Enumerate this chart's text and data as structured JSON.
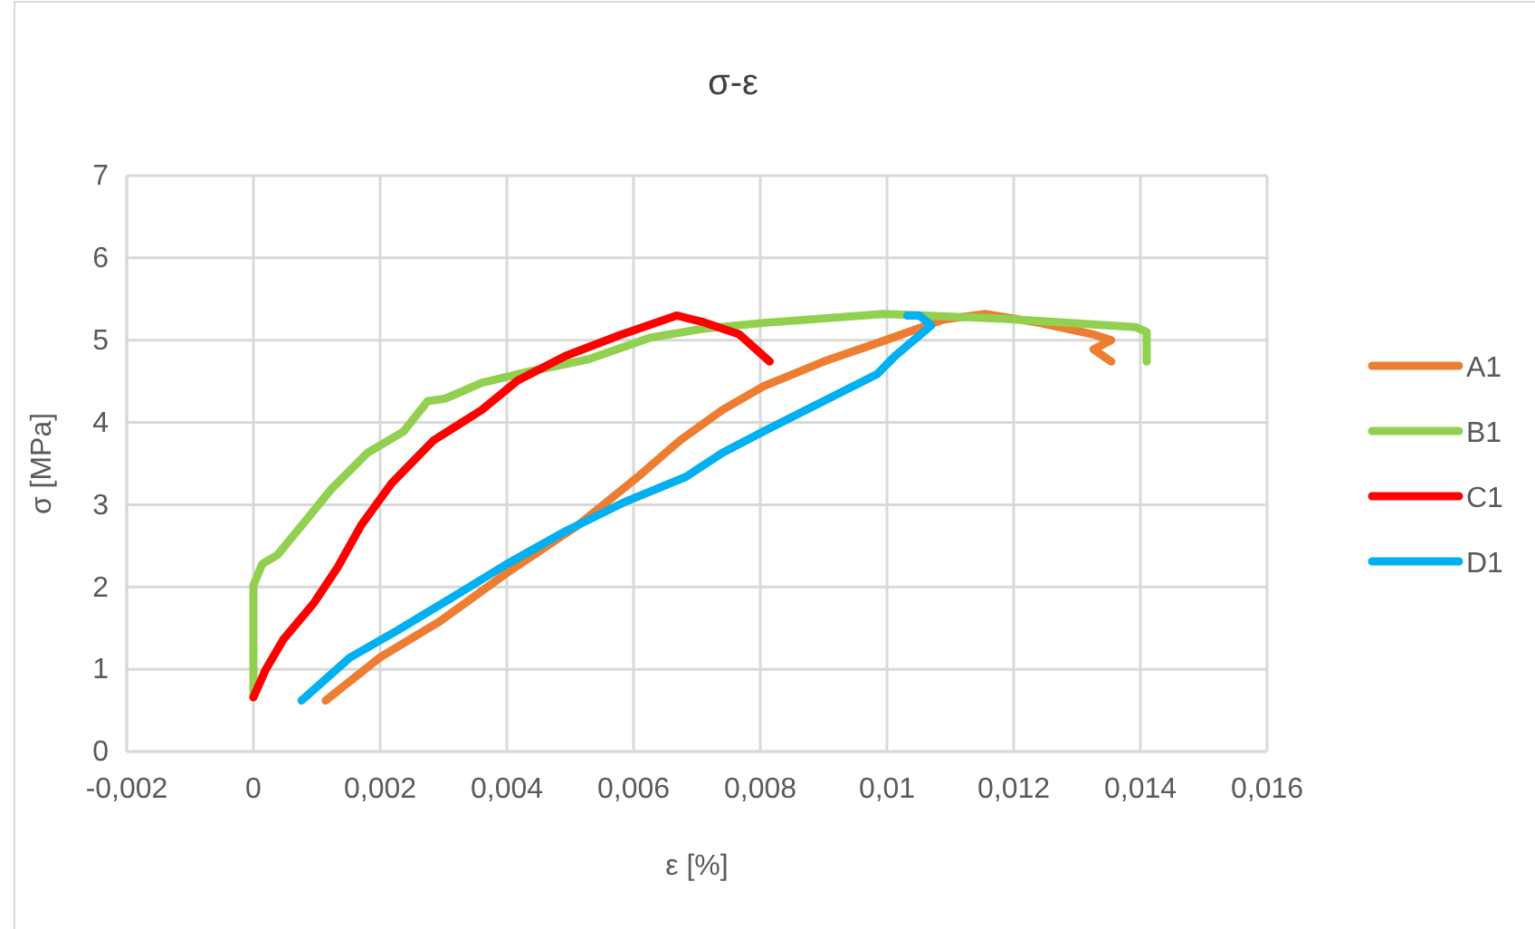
{
  "chart_data": {
    "type": "line",
    "title": "σ-ε",
    "xlabel": "ε [%]",
    "ylabel": "σ [MPa]",
    "xlim": [
      -0.002,
      0.016
    ],
    "xticks": [
      {
        "value": -0.002,
        "label": "-0,002"
      },
      0,
      {
        "value": 0.002,
        "label": "0,002"
      },
      {
        "value": 0.004,
        "label": "0,004"
      },
      {
        "value": 0.006,
        "label": "0,006"
      },
      {
        "value": 0.008,
        "label": "0,008"
      },
      {
        "value": 0.01,
        "label": "0,01"
      },
      {
        "value": 0.012,
        "label": "0,012"
      },
      {
        "value": 0.014,
        "label": "0,014"
      },
      {
        "value": 0.016,
        "label": "0,016"
      }
    ],
    "ylim": [
      0,
      7
    ],
    "yticks": [
      0,
      1,
      2,
      3,
      4,
      5,
      6,
      7
    ],
    "grid": true,
    "legend": "right",
    "marker": "none",
    "line_style": "solid",
    "series": [
      {
        "name": "A1",
        "color": "#ed7d31",
        "x": [
          0.00114,
          0.00199,
          0.00294,
          0.00398,
          0.00512,
          0.00607,
          0.00673,
          0.0074,
          0.00805,
          0.009,
          0.00994,
          0.01089,
          0.01155,
          0.01241,
          0.01326,
          0.01354,
          0.01326,
          0.01354
        ],
        "values": [
          0.62,
          1.14,
          1.58,
          2.16,
          2.75,
          3.34,
          3.78,
          4.15,
          4.44,
          4.74,
          4.99,
          5.25,
          5.32,
          5.21,
          5.07,
          5.0,
          4.89,
          4.74
        ]
      },
      {
        "name": "B1",
        "color": "#92d050",
        "x": [
          0,
          0,
          0.00014,
          0.00038,
          0.00085,
          0.00123,
          0.0018,
          0.00237,
          0.00275,
          0.00303,
          0.0036,
          0.00436,
          0.0053,
          0.00626,
          0.0071,
          0.00805,
          0.00994,
          0.01184,
          0.01392,
          0.0141,
          0.0141
        ],
        "values": [
          0.66,
          2.02,
          2.28,
          2.39,
          2.83,
          3.19,
          3.63,
          3.89,
          4.26,
          4.29,
          4.48,
          4.62,
          4.77,
          5.03,
          5.14,
          5.21,
          5.32,
          5.26,
          5.16,
          5.1,
          4.74
        ]
      },
      {
        "name": "C1",
        "color": "#ff0000",
        "x": [
          0,
          0.00019,
          0.00047,
          0.00095,
          0.00133,
          0.0017,
          0.00218,
          0.00284,
          0.0036,
          0.00417,
          0.00493,
          0.00578,
          0.00668,
          0.0071,
          0.00767,
          0.00815
        ],
        "values": [
          0.66,
          0.99,
          1.36,
          1.8,
          2.24,
          2.75,
          3.26,
          3.78,
          4.15,
          4.51,
          4.81,
          5.06,
          5.3,
          5.22,
          5.07,
          4.74
        ]
      },
      {
        "name": "D1",
        "color": "#00b0f0",
        "x": [
          0.00076,
          0.00152,
          0.00227,
          0.00313,
          0.00398,
          0.00493,
          0.00588,
          0.00683,
          0.0074,
          0.00805,
          0.009,
          0.00985,
          0.01013,
          0.0107,
          0.01051,
          0.01032
        ],
        "values": [
          0.62,
          1.14,
          1.47,
          1.87,
          2.27,
          2.68,
          3.04,
          3.34,
          3.63,
          3.89,
          4.26,
          4.59,
          4.81,
          5.18,
          5.3,
          5.3
        ]
      }
    ]
  }
}
